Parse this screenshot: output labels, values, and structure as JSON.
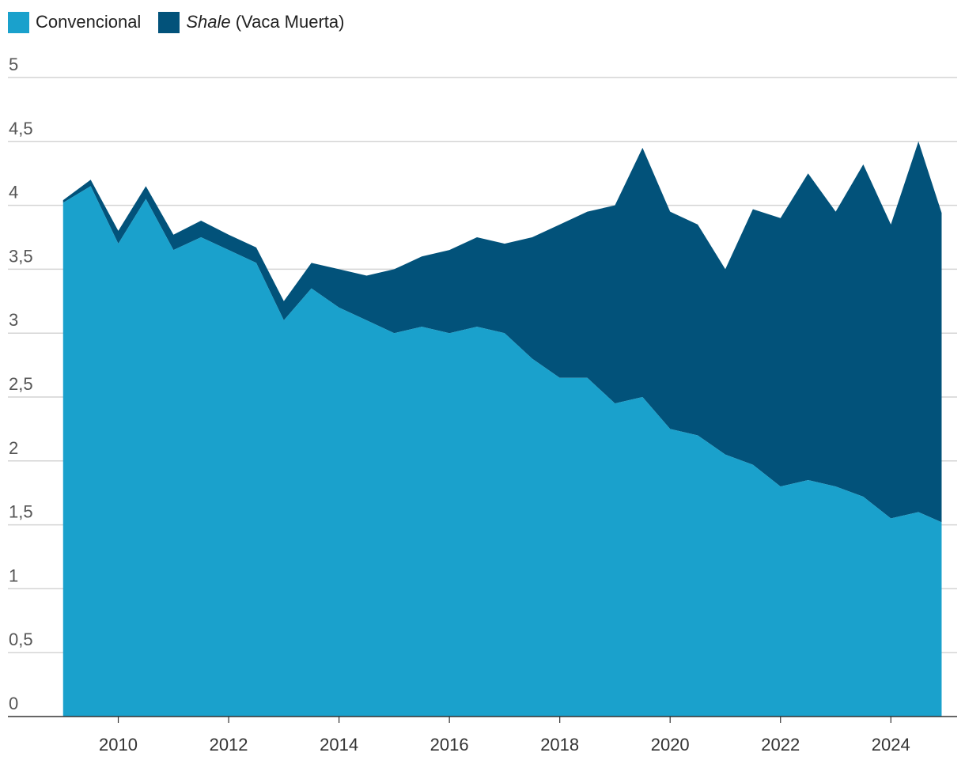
{
  "chart_data": {
    "type": "area",
    "stacked": true,
    "title": "",
    "xlabel": "",
    "ylabel": "",
    "ylim": [
      0,
      5
    ],
    "xlim": [
      2008,
      2025.2
    ],
    "y_ticks": [
      0,
      0.5,
      1,
      1.5,
      2,
      2.5,
      3,
      3.5,
      4,
      4.5,
      5
    ],
    "y_tick_labels": [
      "0",
      "0,5",
      "1",
      "1,5",
      "2",
      "2,5",
      "3",
      "3,5",
      "4",
      "4,5",
      "5"
    ],
    "x_ticks": [
      2010,
      2012,
      2014,
      2016,
      2018,
      2020,
      2022,
      2024
    ],
    "x_tick_labels": [
      "2010",
      "2012",
      "2014",
      "2016",
      "2018",
      "2020",
      "2022",
      "2024"
    ],
    "grid": true,
    "legend_position": "top-left",
    "x": [
      2009.0,
      2009.5,
      2010.0,
      2010.5,
      2011.0,
      2011.5,
      2012.0,
      2012.5,
      2013.0,
      2013.5,
      2014.0,
      2014.5,
      2015.0,
      2015.5,
      2016.0,
      2016.5,
      2017.0,
      2017.5,
      2018.0,
      2018.5,
      2019.0,
      2019.5,
      2020.0,
      2020.5,
      2021.0,
      2021.5,
      2022.0,
      2022.5,
      2023.0,
      2023.5,
      2024.0,
      2024.5,
      2024.92
    ],
    "series": [
      {
        "name": "Convencional",
        "color": "#1aa1cc",
        "values": [
          4.02,
          4.15,
          3.7,
          4.05,
          3.65,
          3.75,
          3.65,
          3.55,
          3.1,
          3.35,
          3.2,
          3.1,
          3.0,
          3.05,
          3.0,
          3.05,
          3.0,
          2.8,
          2.65,
          2.65,
          2.45,
          2.5,
          2.25,
          2.2,
          2.05,
          1.97,
          1.8,
          1.85,
          1.8,
          1.72,
          1.55,
          1.6,
          1.52
        ]
      },
      {
        "name": "Shale (Vaca Muerta)",
        "name_plain": "(Vaca Muerta)",
        "name_italic": "Shale",
        "color": "#02527a",
        "values": [
          0.02,
          0.05,
          0.1,
          0.1,
          0.12,
          0.13,
          0.12,
          0.12,
          0.15,
          0.2,
          0.3,
          0.35,
          0.5,
          0.55,
          0.65,
          0.7,
          0.7,
          0.95,
          1.2,
          1.3,
          1.55,
          1.95,
          1.7,
          1.65,
          1.45,
          2.0,
          2.1,
          2.4,
          2.15,
          2.6,
          2.3,
          2.9,
          2.42
        ]
      }
    ]
  }
}
